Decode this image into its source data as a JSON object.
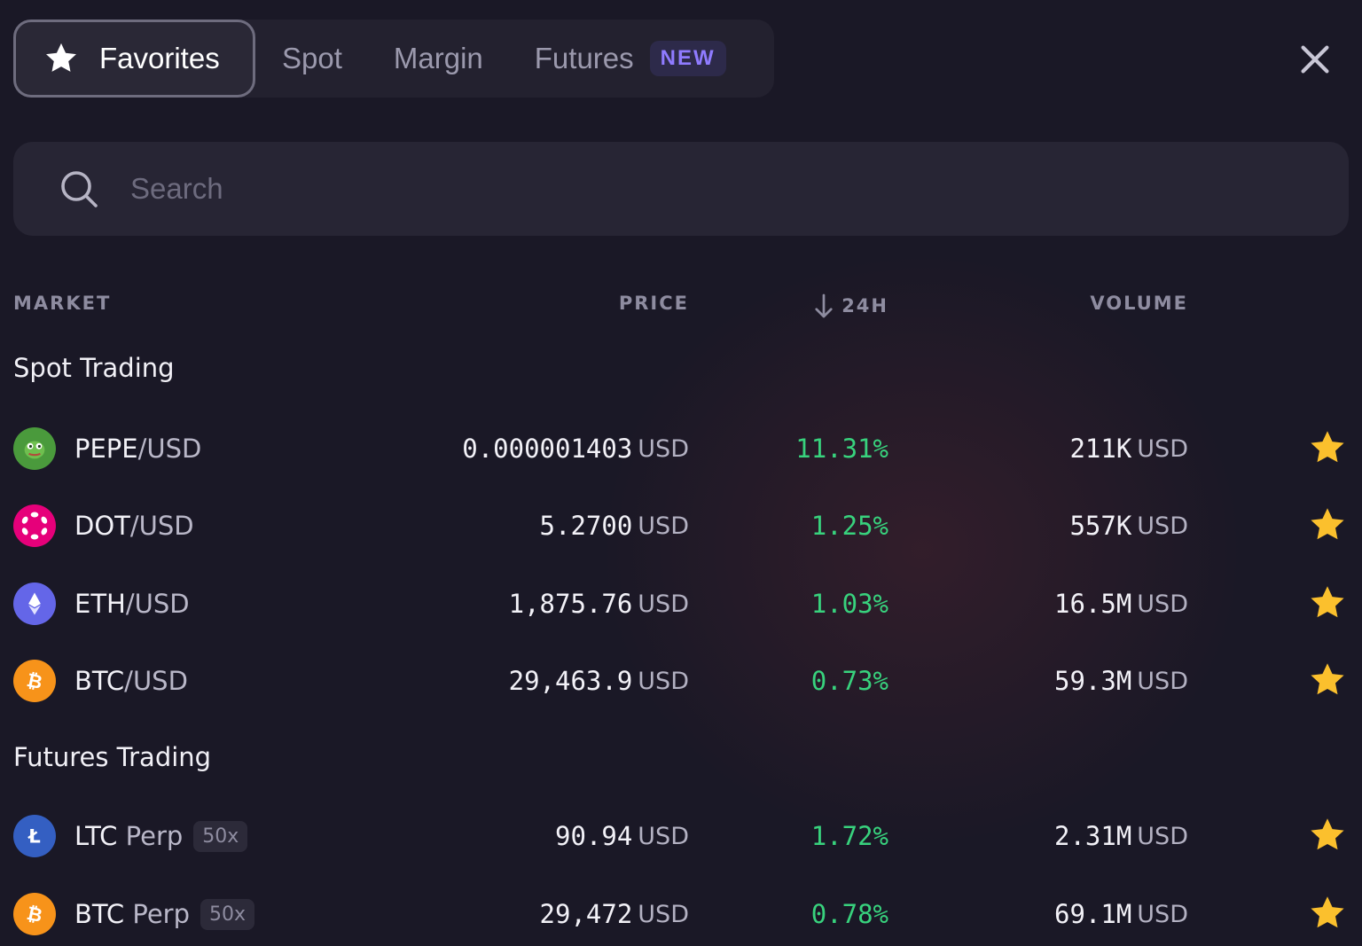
{
  "tabs": [
    {
      "label": "Favorites",
      "active": true
    },
    {
      "label": "Spot"
    },
    {
      "label": "Margin"
    },
    {
      "label": "Futures",
      "badge": "NEW"
    }
  ],
  "search": {
    "placeholder": "Search"
  },
  "columns": {
    "market": "MARKET",
    "price": "PRICE",
    "change": "24H",
    "volume": "VOLUME"
  },
  "sections": [
    {
      "title": "Spot Trading",
      "rows": [
        {
          "base": "PEPE",
          "quote": "/USD",
          "price": "0.000001403",
          "price_unit": "USD",
          "change": "11.31%",
          "volume": "211K",
          "volume_unit": "USD",
          "icon": "pepe-coin-icon",
          "color": "#4a9a3c"
        },
        {
          "base": "DOT",
          "quote": "/USD",
          "price": "5.2700",
          "price_unit": "USD",
          "change": "1.25%",
          "volume": "557K",
          "volume_unit": "USD",
          "icon": "polkadot-coin-icon",
          "color": "#e6007a"
        },
        {
          "base": "ETH",
          "quote": "/USD",
          "price": "1,875.76",
          "price_unit": "USD",
          "change": "1.03%",
          "volume": "16.5M",
          "volume_unit": "USD",
          "icon": "ethereum-coin-icon",
          "color": "#6466e8"
        },
        {
          "base": "BTC",
          "quote": "/USD",
          "price": "29,463.9",
          "price_unit": "USD",
          "change": "0.73%",
          "volume": "59.3M",
          "volume_unit": "USD",
          "icon": "bitcoin-coin-icon",
          "color": "#f7931a"
        }
      ]
    },
    {
      "title": "Futures Trading",
      "rows": [
        {
          "base": "LTC",
          "quote": " Perp",
          "leverage": "50x",
          "price": "90.94",
          "price_unit": "USD",
          "change": "1.72%",
          "volume": "2.31M",
          "volume_unit": "USD",
          "icon": "litecoin-coin-icon",
          "color": "#345fc2"
        },
        {
          "base": "BTC",
          "quote": " Perp",
          "leverage": "50x",
          "price": "29,472",
          "price_unit": "USD",
          "change": "0.78%",
          "volume": "69.1M",
          "volume_unit": "USD",
          "icon": "bitcoin-coin-icon",
          "color": "#f7931a"
        }
      ]
    }
  ],
  "colors": {
    "accent": "#8f7bff",
    "positive": "#38d27d",
    "favorite": "#fbc02d"
  }
}
